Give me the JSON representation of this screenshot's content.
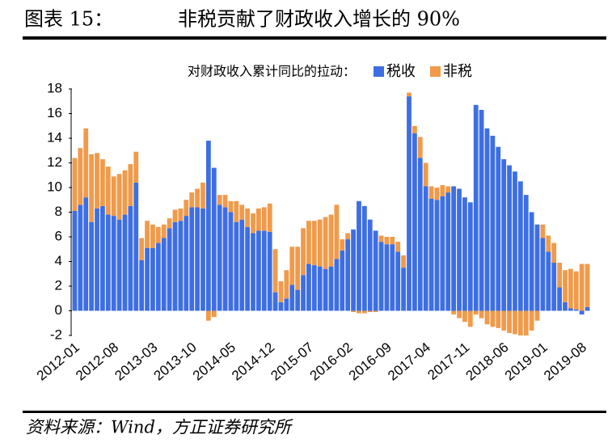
{
  "chart_data": {
    "type": "bar",
    "stacked": true,
    "label": "图表 15：",
    "title": "非税贡献了财政收入增长的 90%",
    "legend_title": "对财政收入累计同比的拉动：",
    "source": "资料来源：Wind，方正证券研究所",
    "categories": [
      "2012-01",
      null,
      null,
      null,
      null,
      null,
      null,
      "2012-08",
      null,
      null,
      null,
      null,
      null,
      null,
      "2013-03",
      null,
      null,
      null,
      null,
      null,
      null,
      "2013-10",
      null,
      null,
      null,
      null,
      null,
      null,
      "2014-05",
      null,
      null,
      null,
      null,
      null,
      null,
      "2014-12",
      null,
      null,
      null,
      null,
      null,
      null,
      "2015-07",
      null,
      null,
      null,
      null,
      null,
      null,
      "2016-02",
      null,
      null,
      null,
      null,
      null,
      null,
      "2016-09",
      null,
      null,
      null,
      null,
      null,
      null,
      "2017-04",
      null,
      null,
      null,
      null,
      null,
      null,
      "2017-11",
      null,
      null,
      null,
      null,
      null,
      null,
      "2018-06",
      null,
      null,
      null,
      null,
      null,
      null,
      "2019-01",
      null,
      null,
      null,
      null,
      null,
      null,
      "2019-08",
      null
    ],
    "series": [
      {
        "name": "税收",
        "color": "#3d6ee3",
        "values": [
          8.1,
          8.6,
          9.2,
          7.2,
          8.3,
          8.5,
          7.8,
          7.7,
          7.4,
          7.8,
          8.5,
          10.4,
          4.1,
          5.1,
          5.1,
          5.5,
          5.9,
          6.7,
          7.2,
          7.3,
          7.7,
          8.4,
          8.4,
          8.3,
          13.8,
          11.6,
          8.6,
          8.4,
          8.0,
          7.2,
          7.4,
          6.8,
          6.3,
          6.5,
          6.5,
          6.4,
          1.5,
          0.7,
          1.0,
          2.1,
          1.7,
          2.9,
          3.8,
          3.7,
          3.6,
          3.4,
          3.6,
          4.2,
          4.9,
          5.8,
          6.6,
          8.9,
          8.5,
          7.4,
          6.5,
          5.6,
          5.4,
          5.4,
          4.8,
          3.5,
          17.4,
          14.4,
          12.4,
          10.1,
          9.1,
          9.0,
          9.3,
          9.6,
          10.1,
          9.9,
          9.2,
          8.8,
          16.7,
          16.3,
          14.8,
          14.2,
          13.3,
          12.3,
          11.8,
          11.3,
          10.5,
          9.4,
          8.0,
          7.0,
          5.9,
          4.8,
          3.9,
          1.9,
          0.7,
          0.2,
          0.1,
          -0.3,
          0.3
        ]
      },
      {
        "name": "非税",
        "color": "#f09a4a",
        "values": [
          4.3,
          4.6,
          5.6,
          5.5,
          4.5,
          3.8,
          3.9,
          3.2,
          3.7,
          3.6,
          3.4,
          2.5,
          1.8,
          2.2,
          1.9,
          1.3,
          1.1,
          0.8,
          1.0,
          1.0,
          1.3,
          1.2,
          1.5,
          2.1,
          -0.8,
          -0.5,
          0.8,
          1.0,
          0.9,
          1.7,
          1.2,
          1.5,
          1.6,
          1.8,
          1.9,
          2.3,
          3.5,
          1.7,
          2.3,
          3.1,
          3.5,
          3.8,
          3.5,
          3.6,
          3.8,
          4.2,
          4.2,
          4.4,
          0.9,
          0.5,
          -0.1,
          -0.2,
          -0.2,
          -0.1,
          -0.1,
          0.5,
          0.6,
          0.6,
          0.8,
          1.0,
          0.3,
          0.6,
          1.7,
          1.9,
          1.0,
          1.0,
          0.9,
          0.5,
          -0.3,
          -0.6,
          -0.9,
          -1.3,
          -0.3,
          -0.6,
          -1.1,
          -1.3,
          -1.4,
          -1.6,
          -1.8,
          -1.9,
          -2.0,
          -2.0,
          -1.6,
          -0.8,
          1.1,
          1.3,
          1.6,
          2.0,
          2.6,
          3.2,
          3.1,
          3.8,
          3.5
        ]
      }
    ],
    "ylim": [
      -2,
      18
    ],
    "yticks": [
      -2,
      0,
      2,
      4,
      6,
      8,
      10,
      12,
      14,
      16,
      18
    ]
  }
}
